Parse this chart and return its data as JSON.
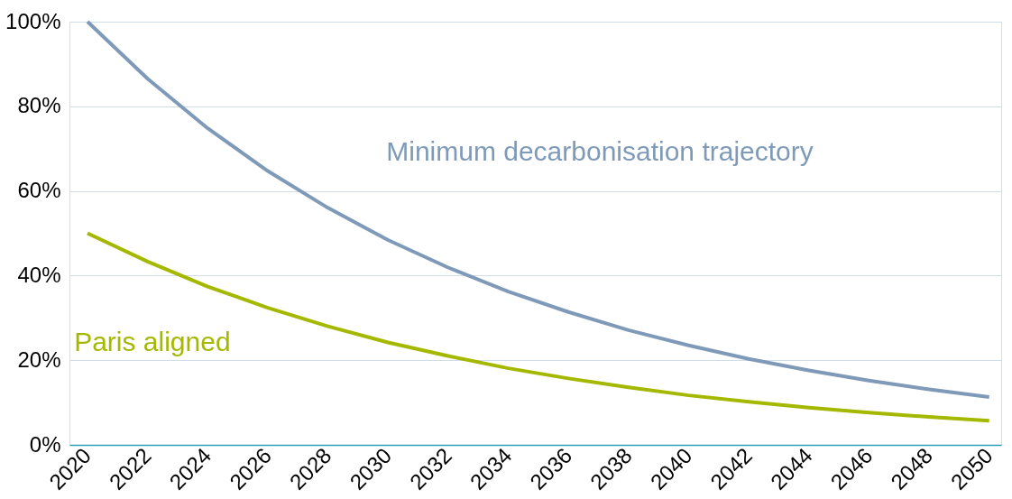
{
  "chart_data": {
    "type": "line",
    "x": [
      2020,
      2022,
      2024,
      2026,
      2028,
      2030,
      2032,
      2034,
      2036,
      2038,
      2040,
      2042,
      2044,
      2046,
      2048,
      2050
    ],
    "series": [
      {
        "name": "Minimum decarbonisation trajectory",
        "color": "#7f9ab8",
        "values": [
          100,
          86.5,
          74.8,
          64.7,
          56.0,
          48.4,
          41.9,
          36.2,
          31.4,
          27.1,
          23.5,
          20.3,
          17.6,
          15.2,
          13.1,
          11.3
        ]
      },
      {
        "name": "Paris aligned",
        "color": "#a5b800",
        "values": [
          50,
          43.3,
          37.4,
          32.4,
          28.0,
          24.2,
          21.0,
          18.1,
          15.7,
          13.6,
          11.7,
          10.2,
          8.8,
          7.6,
          6.6,
          5.7
        ]
      }
    ],
    "xlim": [
      2019.4,
      2050.4
    ],
    "xticks": [
      2020,
      2022,
      2024,
      2026,
      2028,
      2030,
      2032,
      2034,
      2036,
      2038,
      2040,
      2042,
      2044,
      2046,
      2048,
      2050
    ],
    "ylim": [
      0,
      100
    ],
    "yticks": [
      {
        "value": 0,
        "label": "0%"
      },
      {
        "value": 20,
        "label": "20%"
      },
      {
        "value": 40,
        "label": "40%"
      },
      {
        "value": 60,
        "label": "60%"
      },
      {
        "value": 80,
        "label": "80%"
      },
      {
        "value": 100,
        "label": "100%"
      }
    ],
    "grid": "y",
    "marker": "none",
    "line_style": "solid",
    "legend": false
  }
}
